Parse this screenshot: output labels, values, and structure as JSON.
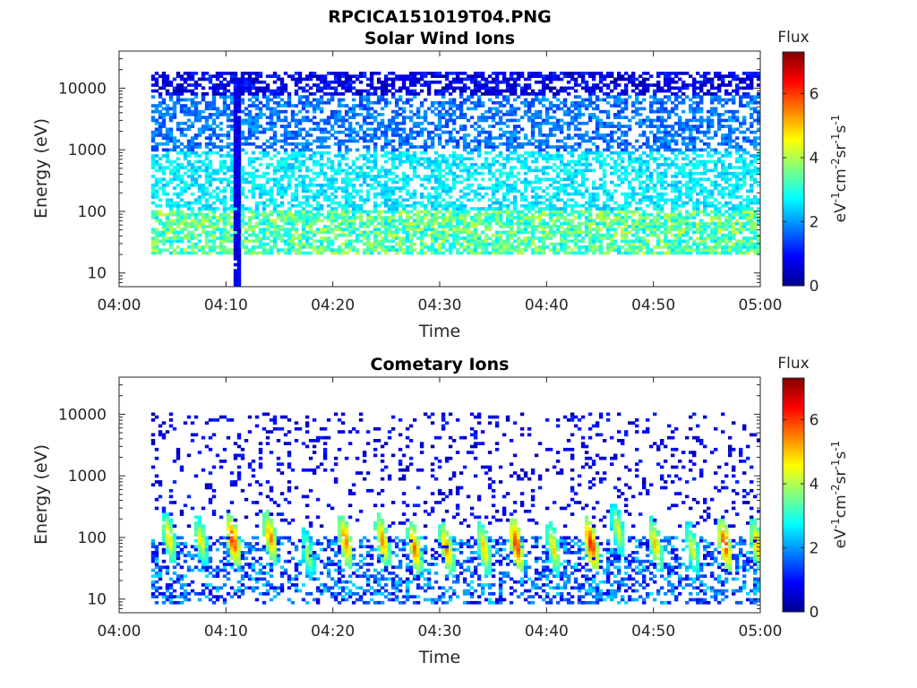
{
  "figure": {
    "suptitle": "RPCICA151019T04.PNG"
  },
  "chart_data": [
    {
      "type": "heatmap",
      "title": "Solar Wind Ions",
      "xlabel": "Time",
      "ylabel": "Energy (eV)",
      "x_ticks": [
        "04:00",
        "04:10",
        "04:20",
        "04:30",
        "04:40",
        "04:50",
        "05:00"
      ],
      "x_range": [
        "04:00",
        "05:00"
      ],
      "y_scale": "log",
      "y_ticks": [
        10,
        100,
        1000,
        10000
      ],
      "y_tick_labels": [
        "10",
        "100",
        "1000",
        "10000"
      ],
      "y_range": [
        6,
        40000
      ],
      "data_start": "04:03",
      "colorbar": {
        "title": "Flux",
        "label": "eV-1cm-2sr-1s-1",
        "ticks": [
          0,
          2,
          4,
          6
        ],
        "range": [
          0,
          7.3
        ],
        "colormap": "jet"
      },
      "populations": [
        {
          "energy_range": [
            20,
            100
          ],
          "flux_range": [
            2.5,
            4.2
          ],
          "density": 0.75
        },
        {
          "energy_range": [
            100,
            900
          ],
          "flux_range": [
            2.2,
            3.0
          ],
          "density": 0.55
        },
        {
          "energy_range": [
            900,
            8000
          ],
          "flux_range": [
            1.3,
            2.2
          ],
          "density": 0.5
        },
        {
          "energy_range": [
            8000,
            18000
          ],
          "flux_range": [
            0.2,
            1.3
          ],
          "density": 0.6
        }
      ],
      "events": [
        {
          "time": "04:10.8",
          "energy_max": 15000,
          "flux": 0.4
        }
      ]
    },
    {
      "type": "heatmap",
      "title": "Cometary Ions",
      "xlabel": "Time",
      "ylabel": "Energy (eV)",
      "x_ticks": [
        "04:00",
        "04:10",
        "04:20",
        "04:30",
        "04:40",
        "04:50",
        "05:00"
      ],
      "x_range": [
        "04:00",
        "05:00"
      ],
      "y_scale": "log",
      "y_ticks": [
        10,
        100,
        1000,
        10000
      ],
      "y_tick_labels": [
        "10",
        "100",
        "1000",
        "10000"
      ],
      "y_range": [
        6,
        40000
      ],
      "data_start": "04:03",
      "colorbar": {
        "title": "Flux",
        "label": "eV-1cm-2sr-1s-1",
        "ticks": [
          0,
          2,
          4,
          6
        ],
        "range": [
          0,
          7.3
        ],
        "colormap": "jet"
      },
      "populations": [
        {
          "energy_range": [
            8,
            100
          ],
          "flux_range": [
            0.6,
            2.6
          ],
          "density": 0.4
        },
        {
          "energy_range": [
            150,
            11000
          ],
          "flux_range": [
            0.3,
            1.2
          ],
          "density": 0.12
        }
      ],
      "bursts": [
        {
          "time": "04:04.5",
          "energy_peak": 45,
          "flux_peak": 5.0
        },
        {
          "time": "04:07.5",
          "energy_peak": 40,
          "flux_peak": 4.8
        },
        {
          "time": "04:10.5",
          "energy_peak": 40,
          "flux_peak": 6.2
        },
        {
          "time": "04:14",
          "energy_peak": 45,
          "flux_peak": 5.6
        },
        {
          "time": "04:17.5",
          "energy_peak": 25,
          "flux_peak": 4.2
        },
        {
          "time": "04:21",
          "energy_peak": 40,
          "flux_peak": 5.8
        },
        {
          "time": "04:24.5",
          "energy_peak": 40,
          "flux_peak": 5.6
        },
        {
          "time": "04:27.5",
          "energy_peak": 30,
          "flux_peak": 5.8
        },
        {
          "time": "04:30.5",
          "energy_peak": 30,
          "flux_peak": 5.6
        },
        {
          "time": "04:34",
          "energy_peak": 30,
          "flux_peak": 5.2
        },
        {
          "time": "04:37",
          "energy_peak": 35,
          "flux_peak": 6.3
        },
        {
          "time": "04:40.5",
          "energy_peak": 30,
          "flux_peak": 5.0
        },
        {
          "time": "04:44",
          "energy_peak": 35,
          "flux_peak": 6.5
        },
        {
          "time": "04:46.5",
          "energy_peak": 60,
          "flux_peak": 4.6
        },
        {
          "time": "04:50",
          "energy_peak": 35,
          "flux_peak": 5.2
        },
        {
          "time": "04:53.5",
          "energy_peak": 30,
          "flux_peak": 4.6
        },
        {
          "time": "04:56.5",
          "energy_peak": 35,
          "flux_peak": 6.2
        },
        {
          "time": "04:59.5",
          "energy_peak": 35,
          "flux_peak": 5.4
        }
      ]
    }
  ]
}
